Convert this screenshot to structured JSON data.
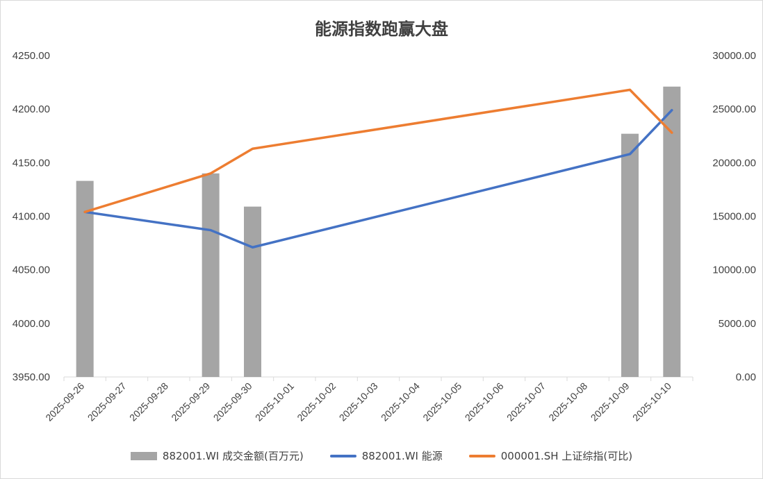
{
  "chart_data": {
    "type": "bar+line",
    "title": "能源指数跑赢大盘",
    "categories": [
      "2025-09-26",
      "2025-09-27",
      "2025-09-28",
      "2025-09-29",
      "2025-09-30",
      "2025-10-01",
      "2025-10-02",
      "2025-10-03",
      "2025-10-04",
      "2025-10-05",
      "2025-10-06",
      "2025-10-07",
      "2025-10-08",
      "2025-10-09",
      "2025-10-10"
    ],
    "y_left": {
      "min": 3950,
      "max": 4250,
      "ticks": [
        "3950.00",
        "4000.00",
        "4050.00",
        "4100.00",
        "4150.00",
        "4200.00",
        "4250.00"
      ]
    },
    "y_right": {
      "min": 0,
      "max": 30000,
      "ticks": [
        "0.00",
        "5000.00",
        "10000.00",
        "15000.00",
        "20000.00",
        "25000.00",
        "30000.00"
      ]
    },
    "series": [
      {
        "name": "882001.WI 成交金额(百万元)",
        "type": "bar",
        "axis": "right",
        "color": "#a5a5a5",
        "points": [
          {
            "x": "2025-09-26",
            "y": 18300
          },
          {
            "x": "2025-09-29",
            "y": 19000
          },
          {
            "x": "2025-09-30",
            "y": 15900
          },
          {
            "x": "2025-10-09",
            "y": 22700
          },
          {
            "x": "2025-10-10",
            "y": 27100
          }
        ]
      },
      {
        "name": "882001.WI 能源",
        "type": "line",
        "axis": "left",
        "color": "#4472c4",
        "points": [
          {
            "x": "2025-09-26",
            "y": 4104
          },
          {
            "x": "2025-09-29",
            "y": 4087
          },
          {
            "x": "2025-09-30",
            "y": 4071
          },
          {
            "x": "2025-10-09",
            "y": 4158
          },
          {
            "x": "2025-10-10",
            "y": 4199
          }
        ]
      },
      {
        "name": "000001.SH 上证综指(可比)",
        "type": "line",
        "axis": "left",
        "color": "#ed7d31",
        "points": [
          {
            "x": "2025-09-26",
            "y": 4104
          },
          {
            "x": "2025-09-29",
            "y": 4140
          },
          {
            "x": "2025-09-30",
            "y": 4163
          },
          {
            "x": "2025-10-09",
            "y": 4218
          },
          {
            "x": "2025-10-10",
            "y": 4178
          }
        ]
      }
    ],
    "legend_position": "bottom",
    "grid": false
  }
}
